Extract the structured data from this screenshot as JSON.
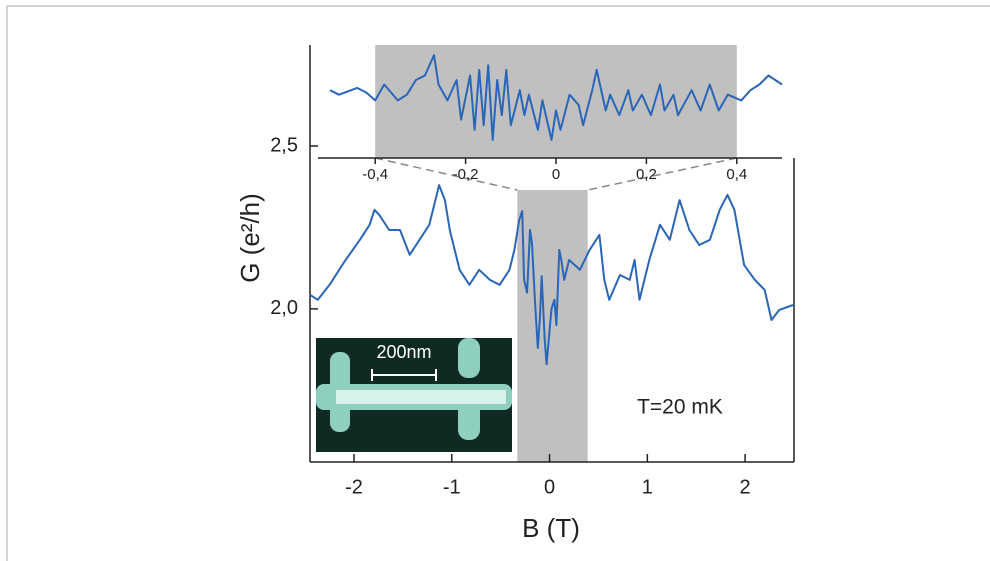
{
  "chart_data": [
    {
      "type": "line",
      "xlabel": "B (T)",
      "ylabel": "G (e²/h)",
      "annotation": "T=20 mK",
      "scale_bar_label": "200nm",
      "xlim": [
        -2.45,
        2.5
      ],
      "ylim": [
        1.53,
        2.81
      ],
      "xticks": [
        -2,
        -1,
        0,
        1,
        2
      ],
      "yticks": [
        {
          "value": 2.0,
          "label": "2,0"
        },
        {
          "value": 2.5,
          "label": "2,5"
        }
      ],
      "highlight": [
        -0.33,
        0.39
      ],
      "highlight_color": "#c0c0c0",
      "series": [
        {
          "color": "#2a66b8",
          "x": [
            -2.45,
            -2.37,
            -2.25,
            -2.1,
            -1.94,
            -1.84,
            -1.79,
            -1.74,
            -1.64,
            -1.53,
            -1.43,
            -1.33,
            -1.23,
            -1.13,
            -1.07,
            -1.02,
            -0.92,
            -0.82,
            -0.72,
            -0.61,
            -0.51,
            -0.41,
            -0.36,
            -0.31,
            -0.28,
            -0.26,
            -0.23,
            -0.2,
            -0.18,
            -0.15,
            -0.12,
            -0.1,
            -0.08,
            -0.05,
            -0.03,
            0,
            0.02,
            0.05,
            0.07,
            0.1,
            0.12,
            0.15,
            0.2,
            0.31,
            0.41,
            0.51,
            0.56,
            0.61,
            0.72,
            0.82,
            0.87,
            0.92,
            1.02,
            1.13,
            1.23,
            1.33,
            1.43,
            1.53,
            1.64,
            1.74,
            1.82,
            1.89,
            1.99,
            2.1,
            2.2,
            2.27,
            2.35,
            2.49
          ],
          "values": [
            2.043,
            2.028,
            2.074,
            2.144,
            2.212,
            2.258,
            2.304,
            2.288,
            2.242,
            2.242,
            2.166,
            2.212,
            2.258,
            2.38,
            2.334,
            2.242,
            2.12,
            2.074,
            2.12,
            2.089,
            2.074,
            2.12,
            2.181,
            2.273,
            2.3,
            2.089,
            2.05,
            2.242,
            2.2,
            2.028,
            1.88,
            1.966,
            2.1,
            1.905,
            1.83,
            1.936,
            2.0,
            2.028,
            1.95,
            2.181,
            2.15,
            2.089,
            2.15,
            2.12,
            2.181,
            2.227,
            2.089,
            2.028,
            2.104,
            2.089,
            2.15,
            2.028,
            2.15,
            2.258,
            2.212,
            2.334,
            2.242,
            2.196,
            2.212,
            2.304,
            2.35,
            2.304,
            2.135,
            2.089,
            2.058,
            1.966,
            1.997,
            2.012
          ]
        }
      ]
    },
    {
      "type": "line",
      "xlim": [
        -0.5,
        0.5
      ],
      "ylim": [
        0,
        1
      ],
      "xticks": [
        {
          "value": -0.4,
          "label": "-0,4"
        },
        {
          "value": -0.2,
          "label": "-0,2"
        },
        0,
        {
          "value": 0.2,
          "label": "0,2"
        },
        {
          "value": 0.4,
          "label": "0,4"
        }
      ],
      "highlight": [
        -0.4,
        0.4
      ],
      "highlight_color": "#c0c0c0",
      "series": [
        {
          "color": "#2a66b8",
          "x": [
            -0.5,
            -0.48,
            -0.44,
            -0.42,
            -0.4,
            -0.38,
            -0.35,
            -0.33,
            -0.31,
            -0.29,
            -0.27,
            -0.26,
            -0.24,
            -0.22,
            -0.21,
            -0.19,
            -0.18,
            -0.17,
            -0.16,
            -0.15,
            -0.14,
            -0.13,
            -0.12,
            -0.11,
            -0.1,
            -0.08,
            -0.07,
            -0.06,
            -0.04,
            -0.03,
            -0.01,
            0,
            0.01,
            0.03,
            0.05,
            0.06,
            0.08,
            0.09,
            0.11,
            0.12,
            0.14,
            0.16,
            0.17,
            0.19,
            0.21,
            0.23,
            0.24,
            0.26,
            0.27,
            0.3,
            0.32,
            0.34,
            0.36,
            0.38,
            0.41,
            0.43,
            0.45,
            0.47,
            0.5
          ],
          "values": [
            0.6,
            0.56,
            0.62,
            0.58,
            0.51,
            0.65,
            0.51,
            0.56,
            0.69,
            0.73,
            0.91,
            0.65,
            0.51,
            0.69,
            0.34,
            0.73,
            0.25,
            0.78,
            0.29,
            0.82,
            0.16,
            0.69,
            0.38,
            0.78,
            0.29,
            0.6,
            0.38,
            0.56,
            0.25,
            0.51,
            0.16,
            0.42,
            0.25,
            0.56,
            0.47,
            0.29,
            0.6,
            0.78,
            0.42,
            0.56,
            0.38,
            0.6,
            0.42,
            0.56,
            0.38,
            0.65,
            0.42,
            0.56,
            0.38,
            0.6,
            0.42,
            0.65,
            0.42,
            0.56,
            0.51,
            0.6,
            0.65,
            0.73,
            0.65
          ]
        }
      ]
    }
  ]
}
